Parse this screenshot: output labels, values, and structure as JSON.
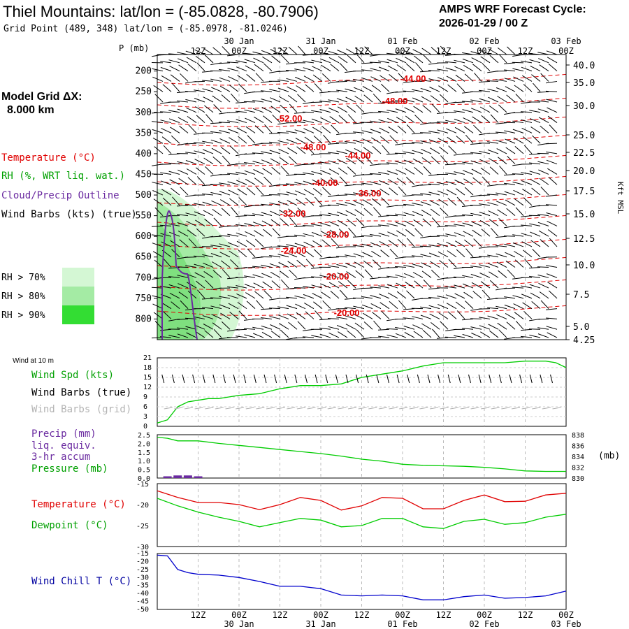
{
  "header": {
    "title": "Thiel Mountains:  lat/lon = (-85.0828, -80.7906)",
    "subtitle": "Grid Point (489, 348) lat/lon = (-85.0978, -81.0246)",
    "cycle_label": "AMPS WRF Forecast Cycle:",
    "cycle_value": "2026-01-29 / 00  Z"
  },
  "left_panel": {
    "grid_label": "Model Grid ΔX:",
    "grid_value": "8.000 km",
    "legend": [
      {
        "text": "Temperature (°C)",
        "color": "#e00000"
      },
      {
        "text": "RH (%, WRT liq. wat.)",
        "color": "#00a000"
      },
      {
        "text": "Cloud/Precip Outline",
        "color": "#6a2aa0"
      },
      {
        "text": "Wind Barbs (kts) (true)",
        "color": "#000000"
      }
    ],
    "rh_legend": [
      {
        "text": "RH > 70%",
        "color": "#d4f7d4"
      },
      {
        "text": "RH > 80%",
        "color": "#a4eba4"
      },
      {
        "text": "RH > 90%",
        "color": "#33dd33"
      }
    ]
  },
  "time_axis": {
    "top_hours": [
      "12Z",
      "00Z",
      "12Z",
      "00Z",
      "12Z",
      "00Z",
      "12Z",
      "00Z",
      "12Z",
      "00Z"
    ],
    "dates": [
      "30 Jan",
      "31 Jan",
      "01 Feb",
      "02 Feb",
      "03 Feb"
    ]
  },
  "sounding": {
    "pressure_title": "P (mb)",
    "pressure_ticks": [
      "200",
      "250",
      "300",
      "350",
      "400",
      "450",
      "500",
      "550",
      "600",
      "650",
      "700",
      "750",
      "800"
    ],
    "height_ticks": [
      "40.0",
      "35.0",
      "30.0",
      "25.0",
      "22.5",
      "20.0",
      "17.5",
      "15.0",
      "12.5",
      "10.0",
      "7.5",
      "5.0",
      "4.25"
    ],
    "height_title": "Kft MSL",
    "temp_labels": [
      "-44.00",
      "-48.00",
      "-52.00",
      "-48.00",
      "-44.00",
      "-40.00",
      "-36.00",
      "-32.00",
      "-28.00",
      "-24.00",
      "-20.00",
      "-20.00"
    ]
  },
  "wind_panel": {
    "header": "Wind at 10 m",
    "labels": [
      {
        "text": "Wind Spd (kts)",
        "color": "#00a000"
      },
      {
        "text": "Wind Barbs (true)",
        "color": "#000000"
      },
      {
        "text": "Wind Barbs (grid)",
        "color": "#b4b4b4"
      }
    ],
    "y_ticks": [
      "21",
      "18",
      "15",
      "12",
      "9",
      "6",
      "3",
      "0"
    ]
  },
  "precip_panel": {
    "labels": [
      {
        "text": "Precip (mm)",
        "color": "#6a2aa0"
      },
      {
        "text": "liq. equiv.",
        "color": "#6a2aa0"
      },
      {
        "text": "3-hr accum",
        "color": "#6a2aa0"
      },
      {
        "text": "Pressure (mb)",
        "color": "#00a000"
      }
    ],
    "left_ticks": [
      "2.5",
      "2.0",
      "1.5",
      "1.0",
      "0.5",
      "0.0"
    ],
    "right_ticks": [
      "838",
      "836",
      "834",
      "832",
      "830"
    ],
    "right_unit": "(mb)"
  },
  "temp_panel": {
    "labels": [
      {
        "text": "Temperature (°C)",
        "color": "#e00000"
      },
      {
        "text": "Dewpoint (°C)",
        "color": "#00a000"
      }
    ],
    "y_ticks": [
      "-15",
      "-20",
      "-25",
      "-30"
    ]
  },
  "windchill_panel": {
    "label": {
      "text": "Wind Chill T (°C)",
      "color": "#0000a0"
    },
    "y_ticks": [
      "-15",
      "-20",
      "-25",
      "-30",
      "-35",
      "-40",
      "-45",
      "-50"
    ]
  },
  "chart_data": [
    {
      "type": "line",
      "title": "Wind at 10 m",
      "ylim": [
        0,
        21
      ],
      "xlim_hours": [
        0,
        120
      ],
      "series": [
        {
          "name": "Wind Spd (kts)",
          "color": "#00cc00",
          "x": [
            0,
            3,
            6,
            9,
            12,
            15,
            18,
            21,
            24,
            30,
            36,
            42,
            48,
            54,
            60,
            66,
            72,
            78,
            84,
            90,
            96,
            102,
            108,
            114,
            117,
            120
          ],
          "values": [
            1,
            2,
            6,
            7.5,
            8,
            8.5,
            8.5,
            9,
            9.5,
            10,
            11.5,
            12.5,
            12.5,
            13,
            15,
            16,
            17,
            18.5,
            19.5,
            19.5,
            19.5,
            19.5,
            20,
            20,
            19.5,
            18
          ]
        }
      ]
    },
    {
      "type": "line",
      "title": "Precip / Pressure",
      "series": [
        {
          "name": "Pressure (mb)",
          "color": "#00cc00",
          "axis": "right",
          "ylim": [
            830,
            838.5
          ],
          "x": [
            0,
            3,
            6,
            12,
            18,
            24,
            30,
            36,
            42,
            48,
            54,
            60,
            66,
            72,
            78,
            84,
            90,
            96,
            102,
            108,
            114,
            120
          ],
          "values": [
            838,
            837.8,
            837.3,
            837.3,
            836.8,
            836.4,
            836,
            835.6,
            835.2,
            834.8,
            834.3,
            833.7,
            833.3,
            832.7,
            832.5,
            832.4,
            832.3,
            832.1,
            831.8,
            831.4,
            831.3,
            831.3
          ]
        },
        {
          "name": "Precip (mm)",
          "color": "#6a2aa0",
          "axis": "left",
          "ylim": [
            0,
            2.5
          ],
          "x": [
            3,
            6,
            9,
            12
          ],
          "values": [
            0.1,
            0.15,
            0.15,
            0.1
          ]
        }
      ]
    },
    {
      "type": "line",
      "title": "Temperature / Dewpoint",
      "ylim": [
        -30,
        -15
      ],
      "series": [
        {
          "name": "Temperature (°C)",
          "color": "#e00000",
          "x": [
            0,
            6,
            12,
            18,
            24,
            30,
            36,
            42,
            48,
            54,
            60,
            66,
            72,
            78,
            84,
            90,
            96,
            102,
            108,
            114,
            120
          ],
          "values": [
            -16.7,
            -18.3,
            -19.5,
            -19.5,
            -20,
            -21.2,
            -20,
            -18.3,
            -19,
            -21.3,
            -20.3,
            -18.3,
            -18.5,
            -21,
            -21,
            -19,
            -17.7,
            -19.3,
            -19.2,
            -17.7,
            -17.3
          ]
        },
        {
          "name": "Dewpoint (°C)",
          "color": "#00cc00",
          "x": [
            0,
            6,
            12,
            18,
            24,
            30,
            36,
            42,
            48,
            54,
            60,
            66,
            72,
            78,
            84,
            90,
            96,
            102,
            108,
            114,
            120
          ],
          "values": [
            -18.5,
            -20.3,
            -21.8,
            -23,
            -24,
            -25.3,
            -24.3,
            -23.3,
            -23.7,
            -25.3,
            -25,
            -23.3,
            -23.3,
            -25.3,
            -25.7,
            -24,
            -23.5,
            -24.7,
            -24.3,
            -23,
            -22.3
          ]
        }
      ]
    },
    {
      "type": "line",
      "title": "Wind Chill T (°C)",
      "ylim": [
        -50,
        -15
      ],
      "series": [
        {
          "name": "Wind Chill T (°C)",
          "color": "#0000cc",
          "x": [
            0,
            3,
            6,
            9,
            12,
            18,
            24,
            30,
            36,
            42,
            48,
            54,
            60,
            66,
            72,
            78,
            84,
            90,
            96,
            102,
            108,
            114,
            120
          ],
          "values": [
            -16,
            -16.5,
            -25,
            -27,
            -28,
            -28.5,
            -30,
            -32.5,
            -35.5,
            -35.5,
            -37,
            -41,
            -41.5,
            -41,
            -41.5,
            -44,
            -44,
            -42,
            -41,
            -43,
            -42.5,
            -41.5,
            -38.5
          ]
        }
      ]
    }
  ]
}
